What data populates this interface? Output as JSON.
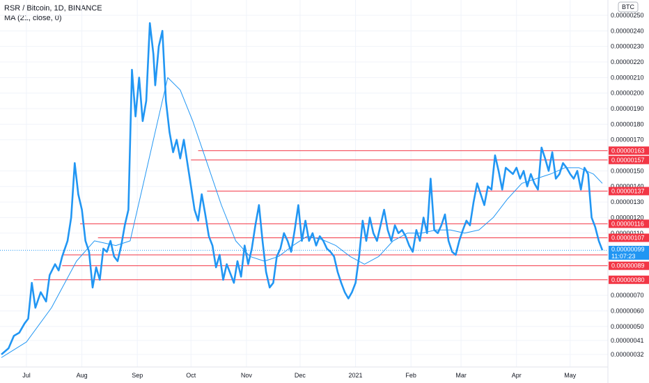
{
  "legend": {
    "symbol": "RSR / Bitcoin, 1D, BINANCE",
    "indicator": "MA (21, close, 0)"
  },
  "currency_badge": "BTC",
  "current_price": {
    "value": "0.00000099",
    "countdown": "11:07:23"
  },
  "colors": {
    "price": "#2196f3",
    "ma": "#2196f3",
    "levels": "#f23645",
    "grid": "#f0f3fa",
    "axis_text": "#131722"
  },
  "chart_data": {
    "type": "line",
    "title": "RSR / Bitcoin, 1D, BINANCE",
    "x_axis_labels": [
      "Jul",
      "Aug",
      "Sep",
      "Oct",
      "Nov",
      "Dec",
      "2021",
      "Feb",
      "Mar",
      "Apr",
      "May"
    ],
    "y_tick_labels": [
      "0.00000250",
      "0.00000240",
      "0.00000230",
      "0.00000220",
      "0.00000210",
      "0.00000200",
      "0.00000190",
      "0.00000180",
      "0.00000170",
      "0.00000150",
      "0.00000140",
      "0.00000130",
      "0.00000120",
      "0.00000110",
      "0.00000070",
      "0.00000060",
      "0.00000050",
      "0.00000041",
      "0.00000032"
    ],
    "ylim": [
      2.8e-07,
      2.54e-06
    ],
    "horizontal_levels": [
      "0.00000163",
      "0.00000157",
      "0.00000137",
      "0.00000116",
      "0.00000107",
      "0.00000096",
      "0.00000089",
      "0.00000080"
    ],
    "series": [
      {
        "name": "RSR / Bitcoin",
        "points": [
          [
            "2020-06-17",
            0.32
          ],
          [
            "2020-06-21",
            0.36
          ],
          [
            "2020-06-24",
            0.44
          ],
          [
            "2020-06-27",
            0.46
          ],
          [
            "2020-06-30",
            0.52
          ],
          [
            "2020-07-02",
            0.55
          ],
          [
            "2020-07-04",
            0.78
          ],
          [
            "2020-07-06",
            0.62
          ],
          [
            "2020-07-09",
            0.72
          ],
          [
            "2020-07-12",
            0.66
          ],
          [
            "2020-07-14",
            0.83
          ],
          [
            "2020-07-17",
            0.9
          ],
          [
            "2020-07-19",
            0.86
          ],
          [
            "2020-07-21",
            0.95
          ],
          [
            "2020-07-24",
            1.05
          ],
          [
            "2020-07-26",
            1.2
          ],
          [
            "2020-07-28",
            1.55
          ],
          [
            "2020-07-30",
            1.35
          ],
          [
            "2020-08-01",
            1.25
          ],
          [
            "2020-08-03",
            1.05
          ],
          [
            "2020-08-05",
            0.98
          ],
          [
            "2020-08-07",
            0.75
          ],
          [
            "2020-08-09",
            0.88
          ],
          [
            "2020-08-11",
            0.8
          ],
          [
            "2020-08-13",
            1.0
          ],
          [
            "2020-08-15",
            0.98
          ],
          [
            "2020-08-17",
            1.05
          ],
          [
            "2020-08-19",
            0.95
          ],
          [
            "2020-08-21",
            0.92
          ],
          [
            "2020-08-23",
            1.02
          ],
          [
            "2020-08-25",
            1.15
          ],
          [
            "2020-08-27",
            1.25
          ],
          [
            "2020-08-29",
            2.15
          ],
          [
            "2020-08-31",
            1.85
          ],
          [
            "2020-09-02",
            2.1
          ],
          [
            "2020-09-04",
            1.82
          ],
          [
            "2020-09-06",
            1.95
          ],
          [
            "2020-09-08",
            2.45
          ],
          [
            "2020-09-10",
            2.25
          ],
          [
            "2020-09-11",
            2.05
          ],
          [
            "2020-09-13",
            2.3
          ],
          [
            "2020-09-15",
            2.4
          ],
          [
            "2020-09-17",
            1.95
          ],
          [
            "2020-09-19",
            1.75
          ],
          [
            "2020-09-21",
            1.62
          ],
          [
            "2020-09-23",
            1.7
          ],
          [
            "2020-09-25",
            1.58
          ],
          [
            "2020-09-27",
            1.7
          ],
          [
            "2020-09-29",
            1.55
          ],
          [
            "2020-10-01",
            1.4
          ],
          [
            "2020-10-03",
            1.25
          ],
          [
            "2020-10-05",
            1.18
          ],
          [
            "2020-10-07",
            1.35
          ],
          [
            "2020-10-09",
            1.22
          ],
          [
            "2020-10-11",
            1.08
          ],
          [
            "2020-10-13",
            1.02
          ],
          [
            "2020-10-15",
            0.88
          ],
          [
            "2020-10-17",
            0.96
          ],
          [
            "2020-10-19",
            0.8
          ],
          [
            "2020-10-21",
            0.9
          ],
          [
            "2020-10-23",
            0.84
          ],
          [
            "2020-10-25",
            0.78
          ],
          [
            "2020-10-27",
            0.92
          ],
          [
            "2020-10-29",
            0.82
          ],
          [
            "2020-10-31",
            1.02
          ],
          [
            "2020-11-02",
            0.9
          ],
          [
            "2020-11-04",
            1.0
          ],
          [
            "2020-11-06",
            1.15
          ],
          [
            "2020-11-08",
            1.28
          ],
          [
            "2020-11-10",
            1.05
          ],
          [
            "2020-11-12",
            0.85
          ],
          [
            "2020-11-14",
            0.75
          ],
          [
            "2020-11-16",
            0.78
          ],
          [
            "2020-11-18",
            0.95
          ],
          [
            "2020-11-20",
            1.0
          ],
          [
            "2020-11-22",
            1.1
          ],
          [
            "2020-11-24",
            1.05
          ],
          [
            "2020-11-26",
            0.98
          ],
          [
            "2020-11-28",
            1.12
          ],
          [
            "2020-11-30",
            1.28
          ],
          [
            "2020-12-02",
            1.05
          ],
          [
            "2020-12-04",
            1.18
          ],
          [
            "2020-12-06",
            1.05
          ],
          [
            "2020-12-08",
            1.1
          ],
          [
            "2020-12-10",
            1.02
          ],
          [
            "2020-12-12",
            1.08
          ],
          [
            "2020-12-14",
            1.05
          ],
          [
            "2020-12-16",
            1.0
          ],
          [
            "2020-12-18",
            0.98
          ],
          [
            "2020-12-20",
            0.95
          ],
          [
            "2020-12-22",
            0.85
          ],
          [
            "2020-12-24",
            0.78
          ],
          [
            "2020-12-26",
            0.72
          ],
          [
            "2020-12-28",
            0.68
          ],
          [
            "2020-12-30",
            0.72
          ],
          [
            "2021-01-01",
            0.78
          ],
          [
            "2021-01-03",
            0.95
          ],
          [
            "2021-01-05",
            1.18
          ],
          [
            "2021-01-07",
            1.05
          ],
          [
            "2021-01-09",
            1.2
          ],
          [
            "2021-01-11",
            1.1
          ],
          [
            "2021-01-13",
            1.05
          ],
          [
            "2021-01-15",
            1.15
          ],
          [
            "2021-01-17",
            1.25
          ],
          [
            "2021-01-19",
            1.12
          ],
          [
            "2021-01-21",
            1.05
          ],
          [
            "2021-01-23",
            1.15
          ],
          [
            "2021-01-25",
            1.1
          ],
          [
            "2021-01-27",
            1.12
          ],
          [
            "2021-01-29",
            1.08
          ],
          [
            "2021-01-31",
            1.02
          ],
          [
            "2021-02-02",
            0.98
          ],
          [
            "2021-02-04",
            1.12
          ],
          [
            "2021-02-06",
            1.05
          ],
          [
            "2021-02-08",
            1.2
          ],
          [
            "2021-02-10",
            1.1
          ],
          [
            "2021-02-12",
            1.45
          ],
          [
            "2021-02-14",
            1.12
          ],
          [
            "2021-02-16",
            1.1
          ],
          [
            "2021-02-18",
            1.15
          ],
          [
            "2021-02-20",
            1.22
          ],
          [
            "2021-02-22",
            1.05
          ],
          [
            "2021-02-24",
            0.98
          ],
          [
            "2021-02-26",
            0.96
          ],
          [
            "2021-02-28",
            1.05
          ],
          [
            "2021-03-02",
            1.12
          ],
          [
            "2021-03-04",
            1.18
          ],
          [
            "2021-03-06",
            1.15
          ],
          [
            "2021-03-08",
            1.3
          ],
          [
            "2021-03-10",
            1.42
          ],
          [
            "2021-03-12",
            1.35
          ],
          [
            "2021-03-14",
            1.28
          ],
          [
            "2021-03-16",
            1.4
          ],
          [
            "2021-03-18",
            1.38
          ],
          [
            "2021-03-20",
            1.6
          ],
          [
            "2021-03-22",
            1.5
          ],
          [
            "2021-03-24",
            1.38
          ],
          [
            "2021-03-26",
            1.52
          ],
          [
            "2021-03-28",
            1.5
          ],
          [
            "2021-03-30",
            1.48
          ],
          [
            "2021-04-01",
            1.52
          ],
          [
            "2021-04-03",
            1.45
          ],
          [
            "2021-04-05",
            1.5
          ],
          [
            "2021-04-07",
            1.4
          ],
          [
            "2021-04-09",
            1.48
          ],
          [
            "2021-04-11",
            1.42
          ],
          [
            "2021-04-13",
            1.38
          ],
          [
            "2021-04-15",
            1.65
          ],
          [
            "2021-04-17",
            1.58
          ],
          [
            "2021-04-19",
            1.5
          ],
          [
            "2021-04-21",
            1.62
          ],
          [
            "2021-04-23",
            1.45
          ],
          [
            "2021-04-25",
            1.48
          ],
          [
            "2021-04-27",
            1.55
          ],
          [
            "2021-04-29",
            1.52
          ],
          [
            "2021-05-01",
            1.48
          ],
          [
            "2021-05-03",
            1.45
          ],
          [
            "2021-05-05",
            1.5
          ],
          [
            "2021-05-07",
            1.38
          ],
          [
            "2021-05-09",
            1.52
          ],
          [
            "2021-05-11",
            1.48
          ],
          [
            "2021-05-13",
            1.2
          ],
          [
            "2021-05-15",
            1.14
          ],
          [
            "2021-05-17",
            1.05
          ],
          [
            "2021-05-19",
            0.99
          ]
        ]
      },
      {
        "name": "MA (21, close, 0)",
        "points": [
          [
            "2020-06-17",
            0.3
          ],
          [
            "2020-07-01",
            0.4
          ],
          [
            "2020-07-15",
            0.62
          ],
          [
            "2020-07-29",
            0.92
          ],
          [
            "2020-08-08",
            1.05
          ],
          [
            "2020-08-20",
            1.02
          ],
          [
            "2020-08-28",
            1.05
          ],
          [
            "2020-09-05",
            1.45
          ],
          [
            "2020-09-13",
            1.85
          ],
          [
            "2020-09-18",
            2.1
          ],
          [
            "2020-09-25",
            2.02
          ],
          [
            "2020-10-02",
            1.82
          ],
          [
            "2020-10-10",
            1.55
          ],
          [
            "2020-10-18",
            1.28
          ],
          [
            "2020-10-26",
            1.05
          ],
          [
            "2020-11-03",
            0.95
          ],
          [
            "2020-11-11",
            0.92
          ],
          [
            "2020-11-19",
            0.95
          ],
          [
            "2020-11-27",
            1.02
          ],
          [
            "2020-12-05",
            1.08
          ],
          [
            "2020-12-13",
            1.06
          ],
          [
            "2020-12-21",
            1.02
          ],
          [
            "2020-12-29",
            0.95
          ],
          [
            "2021-01-06",
            0.9
          ],
          [
            "2021-01-14",
            0.95
          ],
          [
            "2021-01-22",
            1.05
          ],
          [
            "2021-01-30",
            1.1
          ],
          [
            "2021-02-07",
            1.1
          ],
          [
            "2021-02-15",
            1.12
          ],
          [
            "2021-02-23",
            1.12
          ],
          [
            "2021-03-03",
            1.1
          ],
          [
            "2021-03-11",
            1.12
          ],
          [
            "2021-03-19",
            1.2
          ],
          [
            "2021-03-27",
            1.32
          ],
          [
            "2021-04-04",
            1.42
          ],
          [
            "2021-04-12",
            1.45
          ],
          [
            "2021-04-20",
            1.48
          ],
          [
            "2021-04-28",
            1.52
          ],
          [
            "2021-05-06",
            1.52
          ],
          [
            "2021-05-14",
            1.48
          ],
          [
            "2021-05-19",
            1.42
          ]
        ]
      }
    ],
    "grid": true,
    "legend_position": "top-left"
  }
}
